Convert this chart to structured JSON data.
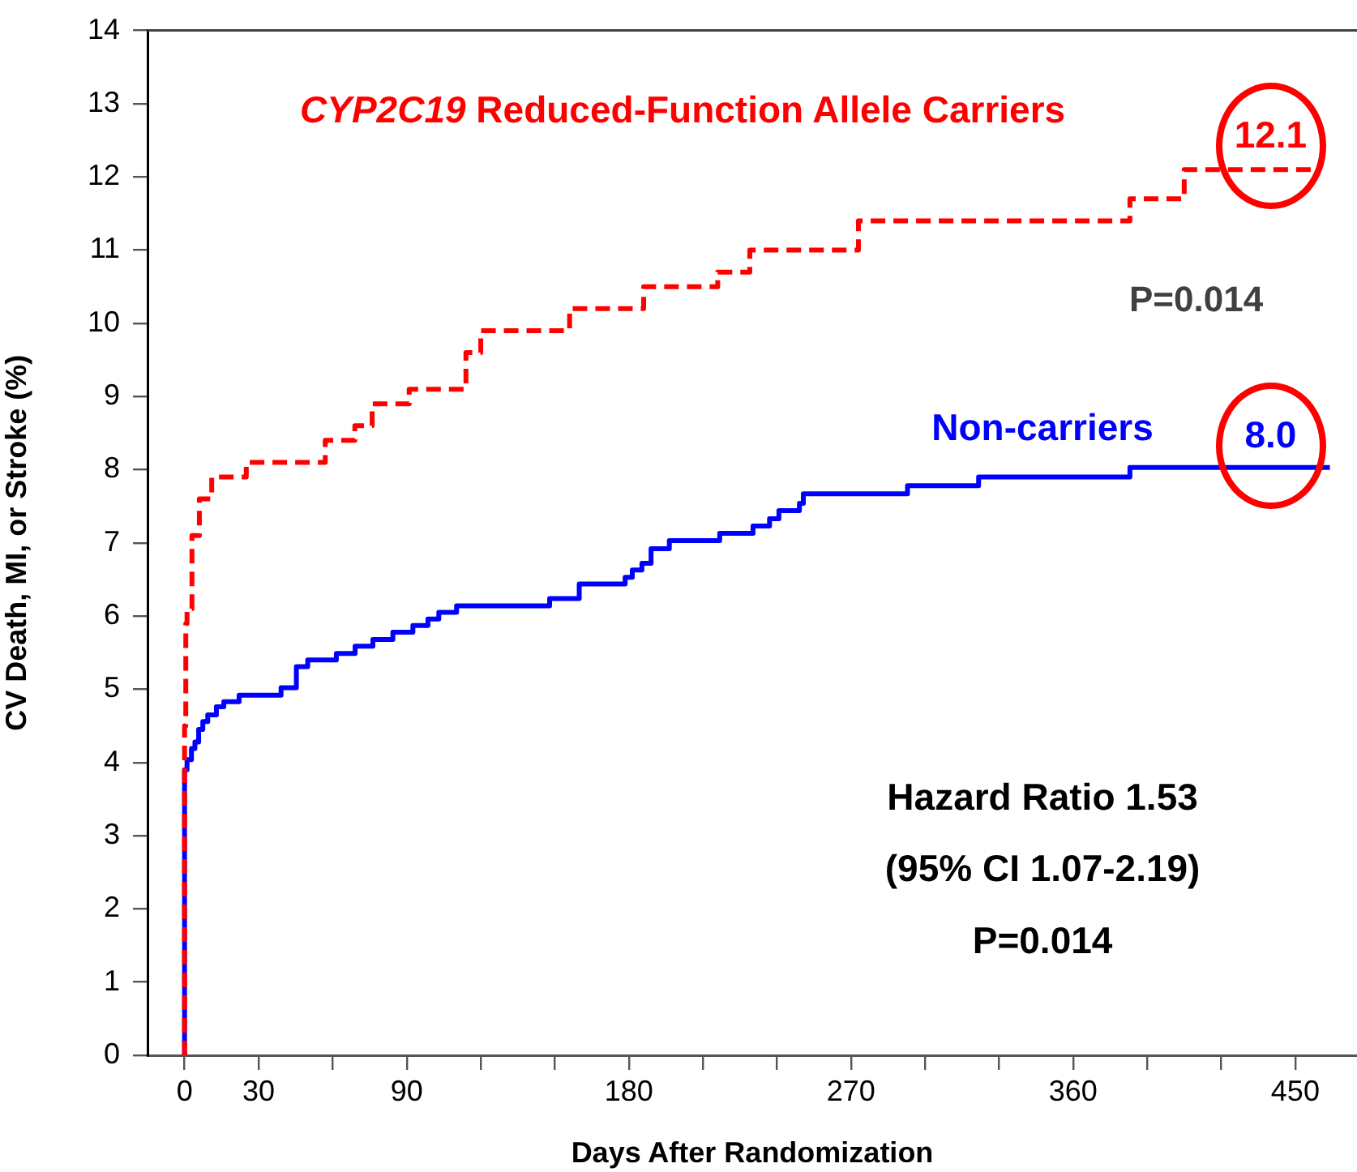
{
  "chart_data": {
    "type": "step",
    "xlabel": "Days After Randomization",
    "ylabel": "CV Death, MI, or Stroke (%)",
    "xlim": [
      -15,
      475
    ],
    "ylim": [
      0,
      14
    ],
    "xticks": [
      0,
      30,
      {
        "value": 60,
        "label": null
      },
      90,
      {
        "value": 120,
        "label": null
      },
      {
        "value": 150,
        "label": null
      },
      180,
      {
        "value": 210,
        "label": null
      },
      {
        "value": 240,
        "label": null
      },
      270,
      {
        "value": 300,
        "label": null
      },
      {
        "value": 330,
        "label": null
      },
      360,
      {
        "value": 390,
        "label": null
      },
      {
        "value": 420,
        "label": null
      },
      450
    ],
    "yticks": [
      0,
      1,
      2,
      3,
      4,
      5,
      6,
      7,
      8,
      9,
      10,
      11,
      12,
      13,
      14
    ],
    "grid": false,
    "legend": false,
    "marker": "none",
    "series": [
      {
        "name": "CYP2C19 Reduced-Function Allele Carriers",
        "color": "#ff0000",
        "line_style": "dashed",
        "x": [
          0,
          0,
          0.5,
          1,
          3,
          6,
          11,
          25,
          57,
          69,
          76,
          91,
          114,
          120,
          156,
          186,
          216,
          229,
          273,
          383,
          405,
          418,
          459
        ],
        "values": [
          0,
          3.8,
          4.5,
          5.9,
          6.1,
          7.1,
          7.6,
          7.9,
          8.1,
          8.4,
          8.6,
          8.9,
          9.1,
          9.6,
          9.9,
          10.2,
          10.5,
          10.7,
          11.0,
          11.4,
          11.7,
          12.1,
          12.1
        ]
      },
      {
        "name": "Non-carriers",
        "color": "#0000ff",
        "line_style": "solid",
        "x": [
          0,
          0,
          1,
          2.8,
          4.2,
          5.7,
          7.4,
          9.4,
          12.9,
          15.9,
          22.1,
          39.1,
          45.3,
          49.9,
          61.5,
          69.1,
          76.3,
          84.4,
          92.5,
          98.6,
          103,
          110.2,
          147.9,
          159.9,
          178.5,
          181.4,
          185.3,
          189,
          196.4,
          216.8,
          230.3,
          237,
          240.8,
          249.1,
          250.7,
          292.9,
          321.7,
          383,
          420,
          464
        ],
        "values": [
          0,
          3.7,
          3.9,
          4.04,
          4.19,
          4.28,
          4.45,
          4.56,
          4.65,
          4.76,
          4.83,
          4.92,
          5.02,
          5.31,
          5.4,
          5.49,
          5.59,
          5.68,
          5.78,
          5.87,
          5.96,
          6.05,
          6.14,
          6.24,
          6.44,
          6.53,
          6.63,
          6.72,
          6.92,
          7.03,
          7.13,
          7.23,
          7.33,
          7.44,
          7.54,
          7.67,
          7.78,
          7.9,
          8.03,
          8.03
        ]
      }
    ],
    "annotations": [
      {
        "text": "12.1",
        "x": 440,
        "y": 12.1
      },
      {
        "text": "8.0",
        "x": 440,
        "y": 8.0
      },
      "P=0.014",
      "Hazard Ratio 1.53",
      "(95% CI 1.07-2.19)",
      "P=0.014"
    ]
  }
}
